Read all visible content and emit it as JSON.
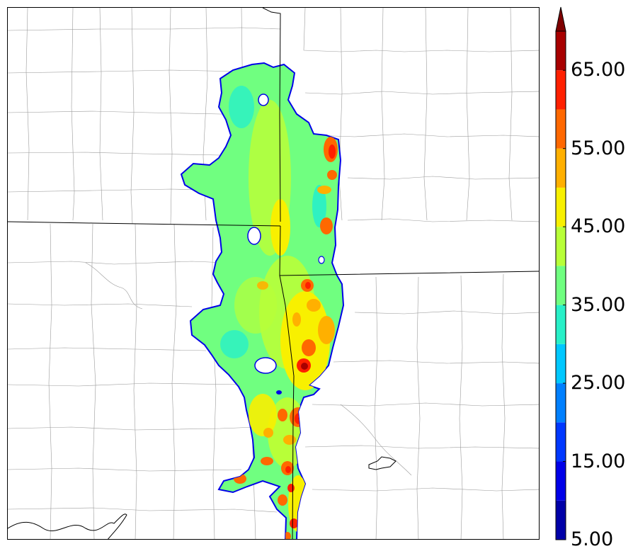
{
  "map": {
    "type": "radar-reflectivity",
    "colorbar": {
      "levels": [
        5,
        10,
        15,
        20,
        25,
        30,
        35,
        40,
        45,
        50,
        55,
        60,
        65,
        70
      ],
      "colors": [
        "#0000a8",
        "#0000e8",
        "#0038ff",
        "#0080ff",
        "#00c8ff",
        "#28f0c8",
        "#70ff80",
        "#b8ff38",
        "#f8f000",
        "#ffb000",
        "#ff6800",
        "#ff2000",
        "#a80000"
      ],
      "extend_color": "#7f0000",
      "labels": [
        {
          "value": 5,
          "text": "5.00"
        },
        {
          "value": 15,
          "text": "15.00"
        },
        {
          "value": 25,
          "text": "25.00"
        },
        {
          "value": 35,
          "text": "35.00"
        },
        {
          "value": 45,
          "text": "45.00"
        },
        {
          "value": 55,
          "text": "55.00"
        },
        {
          "value": 65,
          "text": "65.00"
        }
      ]
    }
  }
}
